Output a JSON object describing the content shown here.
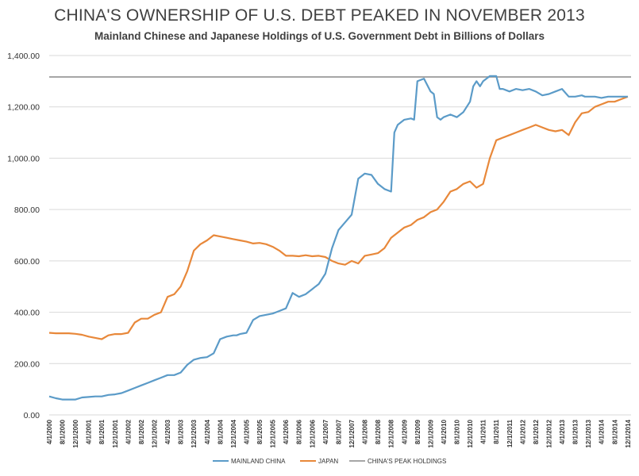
{
  "chart_data": {
    "type": "line",
    "title": "CHINA'S OWNERSHIP OF U.S. DEBT PEAKED IN NOVEMBER 2013",
    "subtitle": "Mainland Chinese and Japanese Holdings of U.S. Government Debt in Billions of Dollars",
    "xlabel": "",
    "ylabel": "",
    "ylim": [
      0,
      1400
    ],
    "yticks": [
      0,
      200,
      400,
      600,
      800,
      1000,
      1200,
      1400
    ],
    "ytick_labels": [
      "0.00",
      "200.00",
      "400.00",
      "600.00",
      "800.00",
      "1,000.00",
      "1,200.00",
      "1,400.00"
    ],
    "xlim": [
      2000.25,
      2015.0
    ],
    "x_ticks": [
      2000.25,
      2000.583,
      2000.917,
      2001.25,
      2001.583,
      2001.917,
      2002.25,
      2002.583,
      2002.917,
      2003.25,
      2003.583,
      2003.917,
      2004.25,
      2004.583,
      2004.917,
      2005.25,
      2005.583,
      2005.917,
      2006.25,
      2006.583,
      2006.917,
      2007.25,
      2007.583,
      2007.917,
      2008.25,
      2008.583,
      2008.917,
      2009.25,
      2009.583,
      2009.917,
      2010.25,
      2010.583,
      2010.917,
      2011.25,
      2011.583,
      2011.917,
      2012.25,
      2012.583,
      2012.917,
      2013.25,
      2013.583,
      2013.917,
      2014.25,
      2014.583,
      2014.917
    ],
    "x_tick_labels": [
      "4/1/2000",
      "8/1/2000",
      "12/1/2000",
      "4/1/2001",
      "8/1/2001",
      "12/1/2001",
      "4/1/2002",
      "8/1/2002",
      "12/1/2002",
      "4/1/2003",
      "8/1/2003",
      "12/1/2003",
      "4/1/2004",
      "8/1/2004",
      "12/1/2004",
      "4/1/2005",
      "8/1/2005",
      "12/1/2005",
      "4/1/2006",
      "8/1/2006",
      "12/1/2006",
      "4/1/2007",
      "8/1/2007",
      "12/1/2007",
      "4/1/2008",
      "8/1/2008",
      "12/1/2008",
      "4/1/2009",
      "8/1/2009",
      "12/1/2009",
      "4/1/2010",
      "8/1/2010",
      "12/1/2010",
      "4/1/2011",
      "8/1/2011",
      "12/1/2011",
      "4/1/2012",
      "8/1/2012",
      "12/1/2012",
      "4/1/2013",
      "8/1/2013",
      "12/1/2013",
      "4/1/2014",
      "8/1/2014",
      "12/1/2014"
    ],
    "grid": "horizontal",
    "legend_position": "bottom",
    "series": [
      {
        "name": "MAINLAND CHINA",
        "color": "#5b9bc8",
        "x": [
          2000.25,
          2000.42,
          2000.583,
          2000.75,
          2000.917,
          2001.083,
          2001.25,
          2001.42,
          2001.583,
          2001.75,
          2001.917,
          2002.083,
          2002.25,
          2002.42,
          2002.583,
          2002.75,
          2002.917,
          2003.083,
          2003.25,
          2003.42,
          2003.583,
          2003.75,
          2003.917,
          2004.083,
          2004.25,
          2004.42,
          2004.583,
          2004.75,
          2004.917,
          2005.0,
          2005.083,
          2005.25,
          2005.42,
          2005.583,
          2005.75,
          2005.917,
          2006.0,
          2006.083,
          2006.25,
          2006.42,
          2006.583,
          2006.75,
          2006.917,
          2007.0,
          2007.083,
          2007.25,
          2007.42,
          2007.583,
          2007.75,
          2007.917,
          2008.083,
          2008.25,
          2008.42,
          2008.583,
          2008.75,
          2008.917,
          2009.0,
          2009.083,
          2009.25,
          2009.42,
          2009.5,
          2009.583,
          2009.75,
          2009.917,
          2010.0,
          2010.083,
          2010.17,
          2010.25,
          2010.42,
          2010.583,
          2010.75,
          2010.917,
          2011.0,
          2011.083,
          2011.17,
          2011.25,
          2011.42,
          2011.583,
          2011.67,
          2011.75,
          2011.917,
          2012.083,
          2012.25,
          2012.42,
          2012.583,
          2012.75,
          2012.917,
          2013.083,
          2013.25,
          2013.42,
          2013.583,
          2013.75,
          2013.83,
          2013.917,
          2014.083,
          2014.25,
          2014.42,
          2014.583,
          2014.75,
          2014.917
        ],
        "values": [
          72,
          65,
          60,
          60,
          60,
          68,
          70,
          72,
          72,
          78,
          80,
          85,
          95,
          105,
          115,
          125,
          135,
          145,
          155,
          155,
          165,
          195,
          215,
          222,
          225,
          240,
          295,
          305,
          310,
          310,
          315,
          320,
          370,
          385,
          390,
          395,
          400,
          405,
          415,
          475,
          460,
          470,
          490,
          500,
          510,
          550,
          650,
          720,
          750,
          780,
          920,
          940,
          935,
          900,
          880,
          870,
          1100,
          1130,
          1150,
          1155,
          1150,
          1300,
          1310,
          1260,
          1250,
          1160,
          1150,
          1160,
          1170,
          1160,
          1180,
          1220,
          1280,
          1300,
          1280,
          1300,
          1320,
          1320,
          1270,
          1270,
          1260,
          1270,
          1265,
          1270,
          1260,
          1245,
          1250,
          1260,
          1270,
          1240,
          1240,
          1245,
          1240,
          1240,
          1240,
          1235,
          1240,
          1240,
          1240,
          1240
        ]
      },
      {
        "name": "JAPAN",
        "color": "#e8883a",
        "x": [
          2000.25,
          2000.42,
          2000.583,
          2000.75,
          2000.917,
          2001.083,
          2001.25,
          2001.42,
          2001.583,
          2001.75,
          2001.917,
          2002.083,
          2002.25,
          2002.42,
          2002.583,
          2002.75,
          2002.917,
          2003.083,
          2003.25,
          2003.42,
          2003.583,
          2003.75,
          2003.917,
          2004.083,
          2004.25,
          2004.42,
          2004.583,
          2004.75,
          2004.917,
          2005.083,
          2005.25,
          2005.42,
          2005.583,
          2005.75,
          2005.917,
          2006.083,
          2006.25,
          2006.42,
          2006.583,
          2006.75,
          2006.917,
          2007.083,
          2007.25,
          2007.42,
          2007.583,
          2007.75,
          2007.917,
          2008.083,
          2008.25,
          2008.42,
          2008.583,
          2008.75,
          2008.917,
          2009.083,
          2009.25,
          2009.42,
          2009.583,
          2009.75,
          2009.917,
          2010.083,
          2010.25,
          2010.42,
          2010.583,
          2010.75,
          2010.917,
          2011.083,
          2011.25,
          2011.42,
          2011.583,
          2011.75,
          2011.917,
          2012.083,
          2012.25,
          2012.42,
          2012.583,
          2012.75,
          2012.917,
          2013.083,
          2013.25,
          2013.42,
          2013.583,
          2013.75,
          2013.917,
          2014.083,
          2014.25,
          2014.42,
          2014.583,
          2014.75,
          2014.917
        ],
        "values": [
          320,
          318,
          318,
          318,
          316,
          312,
          305,
          300,
          295,
          310,
          315,
          315,
          320,
          360,
          375,
          375,
          390,
          400,
          460,
          470,
          500,
          560,
          640,
          665,
          680,
          700,
          695,
          690,
          685,
          680,
          675,
          668,
          670,
          665,
          655,
          640,
          620,
          620,
          618,
          622,
          618,
          620,
          615,
          600,
          590,
          585,
          600,
          590,
          620,
          625,
          630,
          650,
          690,
          710,
          730,
          740,
          760,
          770,
          790,
          800,
          830,
          870,
          880,
          900,
          910,
          885,
          900,
          1000,
          1070,
          1080,
          1090,
          1100,
          1110,
          1120,
          1130,
          1120,
          1110,
          1105,
          1110,
          1090,
          1140,
          1175,
          1180,
          1200,
          1210,
          1220,
          1220,
          1230,
          1240
        ]
      },
      {
        "name": "CHINA'S PEAK HOLDINGS",
        "color": "#a6a6a6",
        "x": [
          2000.25,
          2015.0
        ],
        "values": [
          1316.7,
          1316.7
        ]
      }
    ]
  }
}
